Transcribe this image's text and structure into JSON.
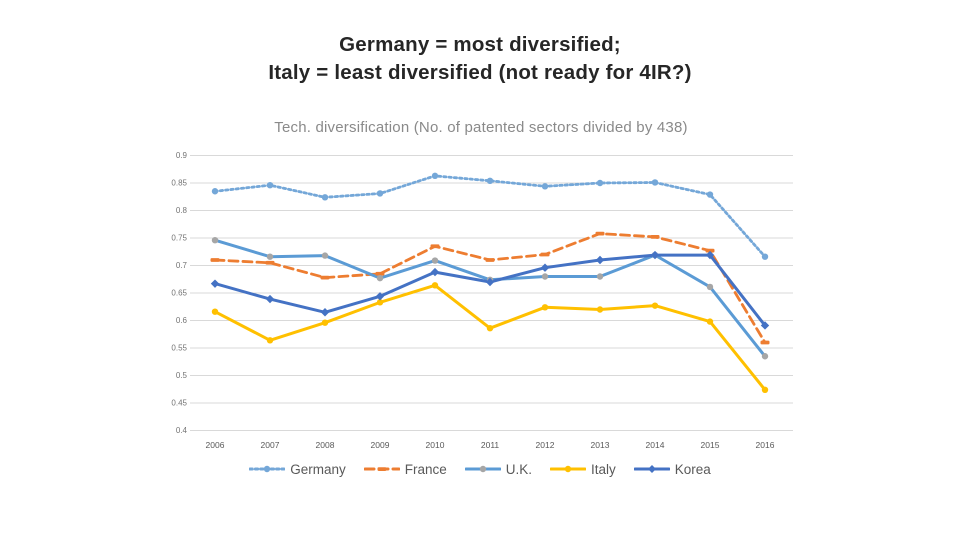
{
  "page": {
    "title_line1": "Germany = most diversified;",
    "title_line2": "Italy = least diversified (not ready for 4IR?)"
  },
  "chart_data": {
    "type": "line",
    "title": "Tech. diversification (No. of patented sectors divided by 438)",
    "x": [
      "2006",
      "2007",
      "2008",
      "2009",
      "2010",
      "2011",
      "2012",
      "2013",
      "2014",
      "2015",
      "2016"
    ],
    "series": [
      {
        "name": "Germany",
        "color": "#74a7d8",
        "line_style": "dotted",
        "marker": "circle",
        "marker_color": "#74a7d8",
        "values": [
          0.835,
          0.846,
          0.824,
          0.831,
          0.863,
          0.854,
          0.844,
          0.85,
          0.851,
          0.829,
          0.716
        ]
      },
      {
        "name": "France",
        "color": "#ed7d31",
        "line_style": "dashed",
        "marker": "dash",
        "marker_color": "#ed7d31",
        "values": [
          0.71,
          0.705,
          0.678,
          0.685,
          0.735,
          0.71,
          0.72,
          0.758,
          0.752,
          0.727,
          0.56
        ]
      },
      {
        "name": "U.K.",
        "color": "#5b9bd5",
        "line_style": "solid",
        "marker": "circle",
        "marker_color": "#a6a6a6",
        "values": [
          0.746,
          0.716,
          0.718,
          0.677,
          0.709,
          0.674,
          0.68,
          0.68,
          0.719,
          0.661,
          0.535
        ]
      },
      {
        "name": "Italy",
        "color": "#ffc000",
        "line_style": "solid",
        "marker": "circle",
        "marker_color": "#ffc000",
        "values": [
          0.616,
          0.564,
          0.596,
          0.633,
          0.664,
          0.586,
          0.624,
          0.62,
          0.627,
          0.598,
          0.474
        ]
      },
      {
        "name": "Korea",
        "color": "#4472c4",
        "line_style": "solid",
        "marker": "diamond",
        "marker_color": "#4472c4",
        "values": [
          0.667,
          0.639,
          0.615,
          0.644,
          0.688,
          0.67,
          0.696,
          0.71,
          0.719,
          0.719,
          0.591
        ]
      }
    ],
    "ylim": [
      0.4,
      0.9
    ],
    "yticks": [
      "0.9",
      "0.85",
      "0.8",
      "0.75",
      "0.7",
      "0.65",
      "0.6",
      "0.55",
      "0.5",
      "0.45",
      "0.4"
    ],
    "xlabel": "",
    "ylabel": "",
    "grid": true,
    "legend_position": "bottom",
    "grid_color": "#d9d9d9",
    "axis_text_color": "#737373"
  }
}
